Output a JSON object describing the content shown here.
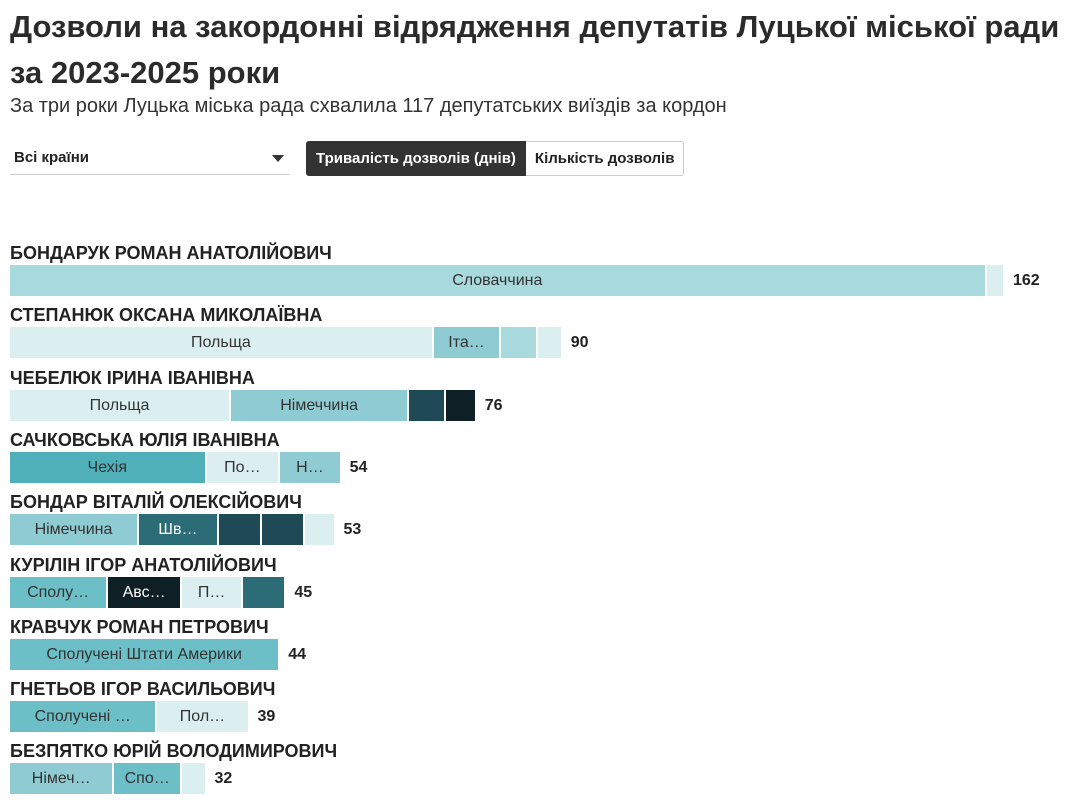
{
  "header": {
    "title": "Дозволи на закордонні відрядження депутатів Луцької міської ради за 2023-2025 роки",
    "subtitle": "За три роки Луцька міська рада схвалила 117 депутатських виїздів за кордон"
  },
  "controls": {
    "country_select": "Всі країни",
    "toggle_duration": "Тривалість дозволів (днів)",
    "toggle_count": "Кількість дозволів"
  },
  "chart_data": {
    "type": "bar",
    "orientation": "horizontal",
    "stacked": true,
    "metric": "Тривалість дозволів (днів)",
    "rows": [
      {
        "name": "БОНДАРУК РОМАН АНАТОЛІЙОВИЧ",
        "total": 162,
        "segments": [
          {
            "label": "Словаччина",
            "value": 159,
            "color": "#a7d9dd"
          },
          {
            "label": "",
            "value": 3,
            "color": "#dbeff1"
          }
        ]
      },
      {
        "name": "СТЕПАНЮК ОКСАНА МИКОЛАЇВНА",
        "total": 90,
        "segments": [
          {
            "label": "Польща",
            "value": 69,
            "color": "#dbeff1"
          },
          {
            "label": "Іта…",
            "value": 11,
            "color": "#8fcbd2"
          },
          {
            "label": "",
            "value": 6,
            "color": "#a7d9dd"
          },
          {
            "label": "",
            "value": 4,
            "color": "#dbeff1"
          }
        ]
      },
      {
        "name": "ЧЕБЕЛЮК ІРИНА ІВАНІВНА",
        "total": 76,
        "segments": [
          {
            "label": "Польща",
            "value": 36,
            "color": "#dbeff1"
          },
          {
            "label": "Німеччина",
            "value": 29,
            "color": "#8fcbd2"
          },
          {
            "label": "",
            "value": 6,
            "color": "#1f4a55"
          },
          {
            "label": "",
            "value": 5,
            "color": "#0e1f25"
          }
        ]
      },
      {
        "name": "САЧКОВСЬКА ЮЛІЯ ІВАНІВНА",
        "total": 54,
        "segments": [
          {
            "label": "Чехія",
            "value": 32,
            "color": "#4fb0ba"
          },
          {
            "label": "По…",
            "value": 12,
            "color": "#dbeff1"
          },
          {
            "label": "Н…",
            "value": 10,
            "color": "#8fcbd2"
          }
        ]
      },
      {
        "name": "БОНДАР ВІТАЛІЙ ОЛЕКСІЙОВИЧ",
        "total": 53,
        "segments": [
          {
            "label": "Німеччина",
            "value": 21,
            "color": "#8fcbd2"
          },
          {
            "label": "Шв…",
            "value": 13,
            "color": "#2c6c76"
          },
          {
            "label": "",
            "value": 7,
            "color": "#1f4a55"
          },
          {
            "label": "",
            "value": 7,
            "color": "#1f4a55"
          },
          {
            "label": "",
            "value": 5,
            "color": "#dbeff1"
          }
        ]
      },
      {
        "name": "КУРІЛІН ІГОР АНАТОЛІЙОВИЧ",
        "total": 45,
        "segments": [
          {
            "label": "Сполу…",
            "value": 16,
            "color": "#6cbfc7"
          },
          {
            "label": "Авс…",
            "value": 12,
            "color": "#0e1f25"
          },
          {
            "label": "П…",
            "value": 10,
            "color": "#dbeff1"
          },
          {
            "label": "",
            "value": 7,
            "color": "#2c6c76"
          }
        ]
      },
      {
        "name": "КРАВЧУК РОМАН ПЕТРОВИЧ",
        "total": 44,
        "segments": [
          {
            "label": "Сполучені Штати Америки",
            "value": 44,
            "color": "#6cbfc7"
          }
        ]
      },
      {
        "name": "ГНЕТЬОВ ІГОР ВАСИЛЬОВИЧ",
        "total": 39,
        "segments": [
          {
            "label": "Сполучені …",
            "value": 24,
            "color": "#6cbfc7"
          },
          {
            "label": "Пол…",
            "value": 15,
            "color": "#dbeff1"
          }
        ]
      },
      {
        "name": "БЕЗПЯТКО ЮРІЙ ВОЛОДИМИРОВИЧ",
        "total": 32,
        "segments": [
          {
            "label": "Німеч…",
            "value": 17,
            "color": "#8fcbd2"
          },
          {
            "label": "Спо…",
            "value": 11,
            "color": "#6cbfc7"
          },
          {
            "label": "",
            "value": 4,
            "color": "#dbeff1"
          }
        ]
      }
    ]
  }
}
